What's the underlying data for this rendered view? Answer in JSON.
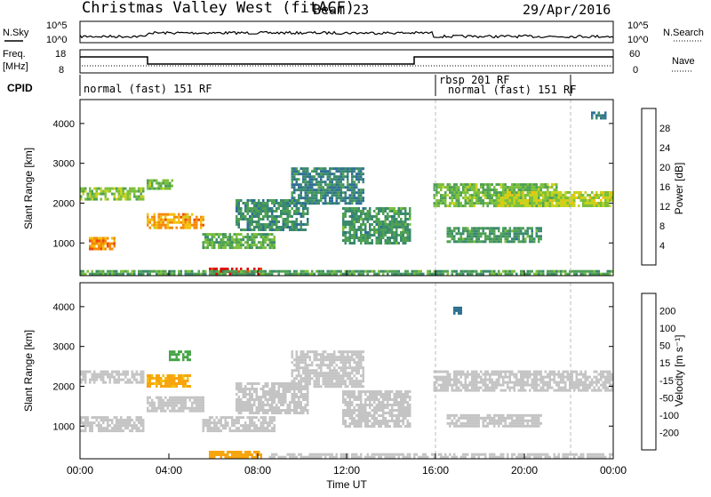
{
  "header": {
    "station": "Christmas Valley West (fitACF)",
    "beam": "Beam 23",
    "date": "29/Apr/2016"
  },
  "noise_panel": {
    "left_label": "N.Sky",
    "right_label": "N.Search",
    "left_ticks": [
      "10^5",
      "10^0"
    ],
    "right_ticks": [
      "10^5",
      "10^0"
    ]
  },
  "freq_panel": {
    "left_label_line1": "Freq.",
    "left_label_line2": "[MHz]",
    "right_label": "Nave",
    "left_ticks": [
      "18",
      "8"
    ],
    "right_ticks": [
      "60",
      "0"
    ]
  },
  "cpid": {
    "label": "CPID",
    "modes": [
      {
        "text": "normal (fast) 151 RF",
        "start_h": 0,
        "end_h": 15.9
      },
      {
        "text": "rbsp 201 RF",
        "start_h": 15.9,
        "end_h": 21.8
      },
      {
        "text": "normal (fast) 151 RF",
        "start_h": 16.0,
        "end_h": 21.8
      }
    ]
  },
  "chart_data": [
    {
      "type": "heatmap",
      "title": "Power",
      "xlabel": "",
      "ylabel": "Slant Range [km]",
      "x_range_h": [
        0,
        24
      ],
      "ylim": [
        180,
        4600
      ],
      "y_ticks": [
        "1000",
        "2000",
        "3000",
        "4000"
      ],
      "colorbar_label": "Power [dB]",
      "colorbar_ticks": [
        "4",
        "8",
        "12",
        "16",
        "20",
        "24",
        "28"
      ],
      "colorbar_range": [
        0,
        30
      ],
      "regions": [
        {
          "t0": 0.0,
          "t1": 2.9,
          "r0": 2100,
          "r1": 2400,
          "v": 15
        },
        {
          "t0": 0.4,
          "t1": 1.6,
          "r0": 850,
          "r1": 1150,
          "v": 23
        },
        {
          "t0": 3.0,
          "t1": 5.6,
          "r0": 1350,
          "r1": 1750,
          "v": 22
        },
        {
          "t0": 3.0,
          "t1": 4.2,
          "r0": 2350,
          "r1": 2600,
          "v": 14
        },
        {
          "t0": 5.5,
          "t1": 8.8,
          "r0": 850,
          "r1": 1250,
          "v": 13
        },
        {
          "t0": 7.0,
          "t1": 10.3,
          "r0": 1300,
          "r1": 2100,
          "v": 10
        },
        {
          "t0": 9.5,
          "t1": 12.8,
          "r0": 2000,
          "r1": 2900,
          "v": 9
        },
        {
          "t0": 11.8,
          "t1": 14.9,
          "r0": 1000,
          "r1": 1900,
          "v": 11
        },
        {
          "t0": 15.9,
          "t1": 21.5,
          "r0": 1950,
          "r1": 2500,
          "v": 14
        },
        {
          "t0": 18.8,
          "t1": 24.0,
          "r0": 1900,
          "r1": 2300,
          "v": 17
        },
        {
          "t0": 16.5,
          "t1": 20.8,
          "r0": 1000,
          "r1": 1400,
          "v": 11
        },
        {
          "t0": 5.8,
          "t1": 8.2,
          "r0": 200,
          "r1": 380,
          "v": 28
        },
        {
          "t0": 0.0,
          "t1": 24.0,
          "r0": 200,
          "r1": 320,
          "v": 12
        },
        {
          "t0": 23.0,
          "t1": 23.7,
          "r0": 4150,
          "r1": 4300,
          "v": 8
        }
      ]
    },
    {
      "type": "heatmap",
      "title": "Velocity",
      "xlabel": "Time UT",
      "ylabel": "Slant Range [km]",
      "x_range_h": [
        0,
        24
      ],
      "x_ticks": [
        "00:00",
        "04:00",
        "08:00",
        "12:00",
        "16:00",
        "20:00",
        "00:00"
      ],
      "ylim": [
        180,
        4600
      ],
      "y_ticks": [
        "1000",
        "2000",
        "3000",
        "4000"
      ],
      "colorbar_label": "Velocity [m s⁻¹]",
      "colorbar_ticks": [
        "200",
        "100",
        "50",
        "15",
        "-15",
        "-50",
        "-100",
        "-200"
      ],
      "regions": [
        {
          "t0": 0.0,
          "t1": 2.9,
          "r0": 2100,
          "r1": 2400,
          "v": 0
        },
        {
          "t0": 0.0,
          "t1": 2.9,
          "r0": 850,
          "r1": 1250,
          "v": 0
        },
        {
          "t0": 3.0,
          "t1": 5.0,
          "r0": 2000,
          "r1": 2300,
          "v": -55
        },
        {
          "t0": 3.0,
          "t1": 5.6,
          "r0": 1350,
          "r1": 1750,
          "v": 0
        },
        {
          "t0": 4.0,
          "t1": 5.0,
          "r0": 2650,
          "r1": 2900,
          "v": 120
        },
        {
          "t0": 5.5,
          "t1": 8.8,
          "r0": 850,
          "r1": 1250,
          "v": 0
        },
        {
          "t0": 7.0,
          "t1": 10.3,
          "r0": 1300,
          "r1": 2100,
          "v": 0
        },
        {
          "t0": 9.5,
          "t1": 12.8,
          "r0": 2000,
          "r1": 2900,
          "v": 0
        },
        {
          "t0": 11.8,
          "t1": 14.9,
          "r0": 1000,
          "r1": 1900,
          "v": 0
        },
        {
          "t0": 15.9,
          "t1": 24.0,
          "r0": 1900,
          "r1": 2400,
          "v": 0
        },
        {
          "t0": 16.5,
          "t1": 20.8,
          "r0": 1000,
          "r1": 1300,
          "v": 0
        },
        {
          "t0": 5.8,
          "t1": 8.2,
          "r0": 200,
          "r1": 380,
          "v": -70
        },
        {
          "t0": 8.5,
          "t1": 24.0,
          "r0": 200,
          "r1": 320,
          "v": 30
        },
        {
          "t0": 16.8,
          "t1": 17.2,
          "r0": 3850,
          "r1": 4000,
          "v": 220
        }
      ]
    }
  ],
  "colors": {
    "power_scale": [
      "#0000ff",
      "#1e44b4",
      "#2f6f96",
      "#3b8a6e",
      "#4fa154",
      "#7bbf3c",
      "#c6d31e",
      "#f2c10b",
      "#f58a0a",
      "#ee4a0d",
      "#e00000"
    ],
    "velocity_scale": [
      "#e00000",
      "#f55a0a",
      "#f7a50f",
      "#f2c10b",
      "#c4c4c4",
      "#c4c4c4",
      "#7bcf33",
      "#45a447",
      "#2b6f8e",
      "#1a3a9e"
    ],
    "ground_scatter": "#c4c4c4"
  }
}
